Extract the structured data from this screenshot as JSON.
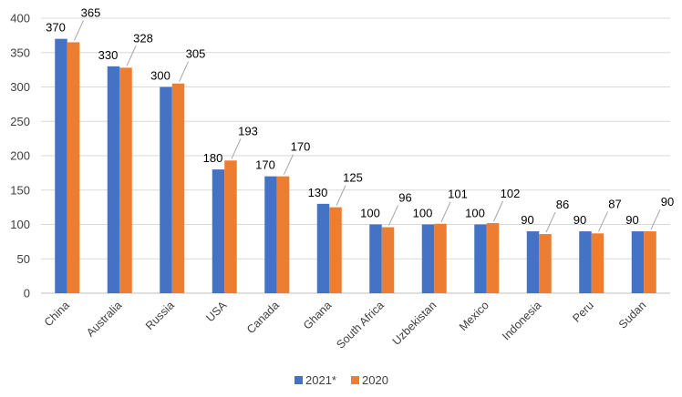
{
  "chart_data": {
    "type": "bar",
    "categories": [
      "China",
      "Australia",
      "Russia",
      "USA",
      "Canada",
      "Ghana",
      "South Africa",
      "Uzbekistan",
      "Mexico",
      "Indonesia",
      "Peru",
      "Sudan"
    ],
    "series": [
      {
        "name": "2021*",
        "color": "#4472c4",
        "values": [
          370,
          330,
          300,
          180,
          170,
          130,
          100,
          100,
          100,
          90,
          90,
          90
        ]
      },
      {
        "name": "2020",
        "color": "#ed7d31",
        "values": [
          365,
          328,
          305,
          193,
          170,
          125,
          96,
          101,
          102,
          86,
          87,
          90
        ]
      }
    ],
    "title": "",
    "xlabel": "",
    "ylabel": "",
    "ylim": [
      0,
      400
    ],
    "yticks": [
      0,
      50,
      100,
      150,
      200,
      250,
      300,
      350,
      400
    ],
    "grid": true,
    "legend": "bottom-center"
  }
}
